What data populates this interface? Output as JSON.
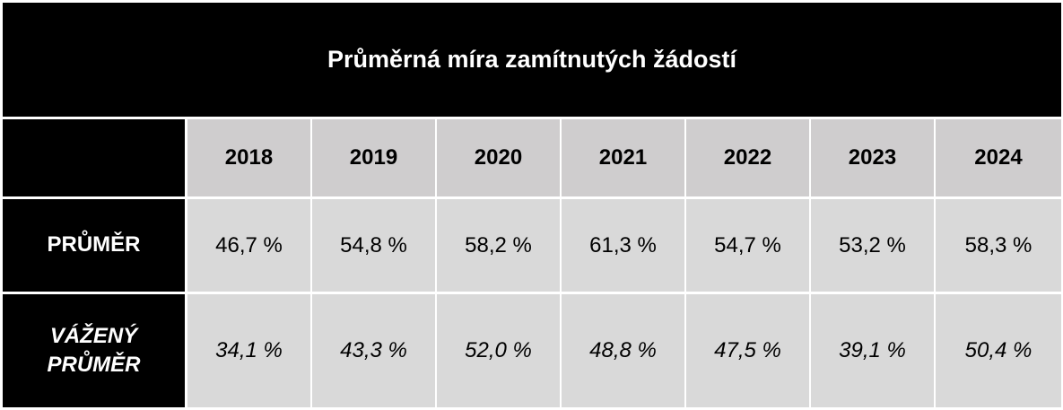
{
  "chart_data": {
    "type": "table",
    "title": "Průměrná míra zamítnutých žádostí",
    "columns": [
      "2018",
      "2019",
      "2020",
      "2021",
      "2022",
      "2023",
      "2024"
    ],
    "rows": [
      {
        "label": "PRŮMĚR",
        "italic": false,
        "cells": [
          "46,7 %",
          "54,8 %",
          "58,2 %",
          "61,3 %",
          "54,7 %",
          "53,2 %",
          "58,3 %"
        ],
        "values": [
          46.7,
          54.8,
          58.2,
          61.3,
          54.7,
          53.2,
          58.3
        ]
      },
      {
        "label_lines": [
          "VÁŽENÝ",
          "PRŮMĚR"
        ],
        "italic": true,
        "cells": [
          "34,1 %",
          "43,3 %",
          "52,0 %",
          "48,8 %",
          "47,5 %",
          "39,1 %",
          "50,4 %"
        ],
        "values": [
          34.1,
          43.3,
          52.0,
          48.8,
          47.5,
          39.1,
          50.4
        ]
      }
    ],
    "unit": "%"
  },
  "colors": {
    "header_background": "#000000",
    "header_text": "#ffffff",
    "year_row_background": "#cfcdce",
    "data_background": "#d9d9d9",
    "data_text": "#000000"
  }
}
